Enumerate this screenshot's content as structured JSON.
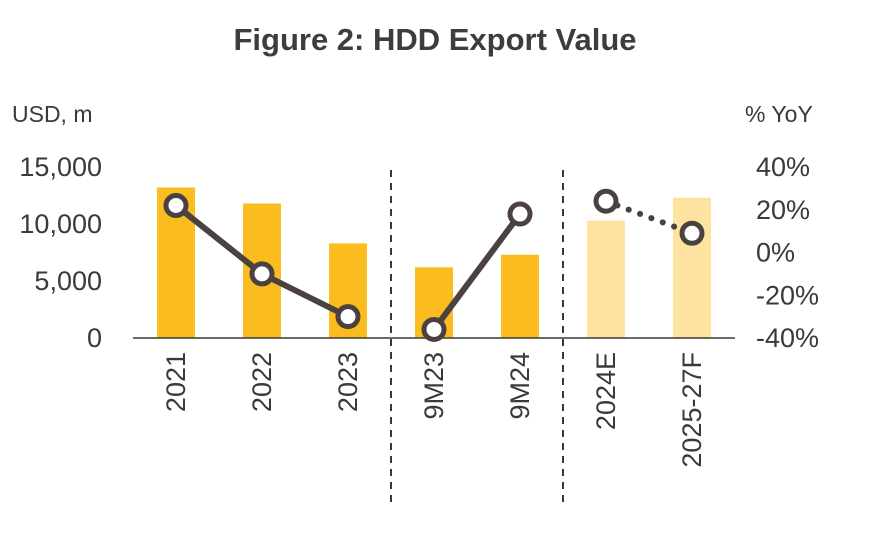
{
  "chart_data": {
    "type": "bar+line",
    "title": "Figure 2: HDD Export Value",
    "left_axis_unit": "USD, m",
    "right_axis_unit": "%  YoY",
    "categories": [
      "2021",
      "2022",
      "2023",
      "9M23",
      "9M24",
      "2024E",
      "2025-27F"
    ],
    "bars": {
      "values": [
        13200,
        11800,
        8300,
        6200,
        7300,
        10300,
        12300
      ],
      "forecast": [
        false,
        false,
        false,
        false,
        false,
        true,
        true
      ]
    },
    "line": {
      "values": [
        22,
        -10,
        -30,
        -36,
        18,
        24,
        9
      ],
      "segments": [
        {
          "from": 0,
          "to": 2,
          "style": "solid"
        },
        {
          "from": 3,
          "to": 4,
          "style": "solid"
        },
        {
          "from": 5,
          "to": 6,
          "style": "dotted"
        }
      ]
    },
    "y_left": {
      "ticks": [
        "15,000",
        "10,000",
        "5,000",
        "0"
      ],
      "tick_values": [
        15000,
        10000,
        5000,
        0
      ],
      "lim": [
        0,
        15000
      ]
    },
    "y_right": {
      "ticks": [
        "40%",
        "20%",
        "0%",
        "-20%",
        "-40%"
      ],
      "tick_values": [
        40,
        20,
        0,
        -20,
        -40
      ],
      "lim": [
        -40,
        40
      ]
    },
    "separators_after": [
      2,
      4
    ],
    "grid": false,
    "colors": {
      "bar": "#FBBC1F",
      "bar_forecast": "#FDE2A0",
      "line": "#4a4140",
      "marker_fill": "#ffffff",
      "axis": "#3a3a3a"
    }
  }
}
